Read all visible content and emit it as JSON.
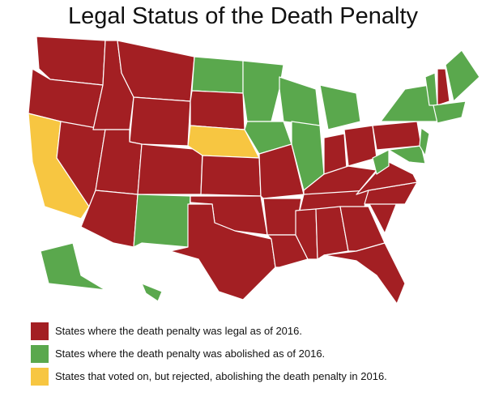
{
  "title": "Legal Status of the Death Penalty",
  "legend": {
    "items": [
      {
        "label": "States where the death penalty was legal as of 2016.",
        "color": "#a31f23"
      },
      {
        "label": "States where the death penalty was abolished as of 2016.",
        "color": "#5aa84d"
      },
      {
        "label": "States that voted on, but rejected, abolishing the death penalty in 2016.",
        "color": "#f7c641"
      }
    ]
  }
}
